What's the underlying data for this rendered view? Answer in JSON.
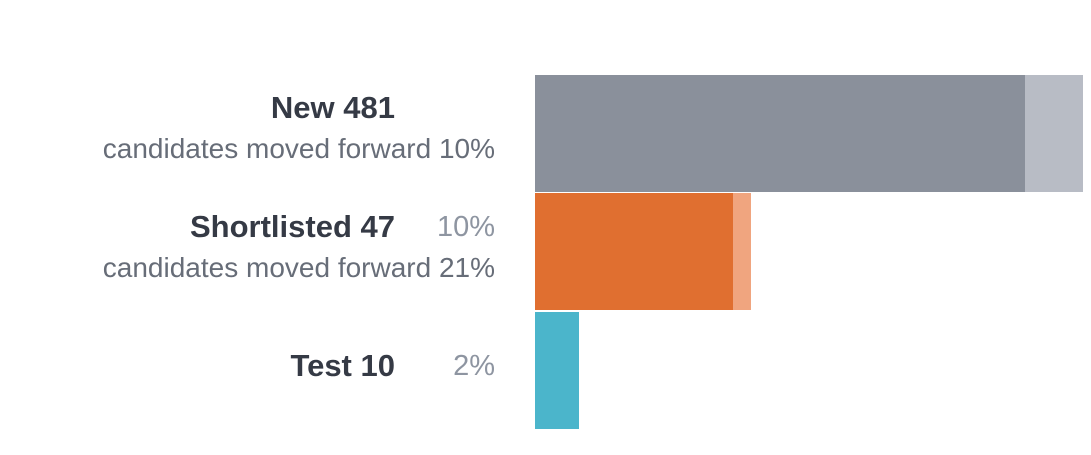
{
  "stages": [
    {
      "name": "New",
      "count": 481,
      "forward": "candidates moved forward 10%"
    },
    {
      "name": "Shortlisted",
      "count": 47,
      "percent": "10%",
      "forward": "candidates moved forward 21%"
    },
    {
      "name": "Test",
      "count": 10,
      "percent": "2%"
    }
  ]
}
